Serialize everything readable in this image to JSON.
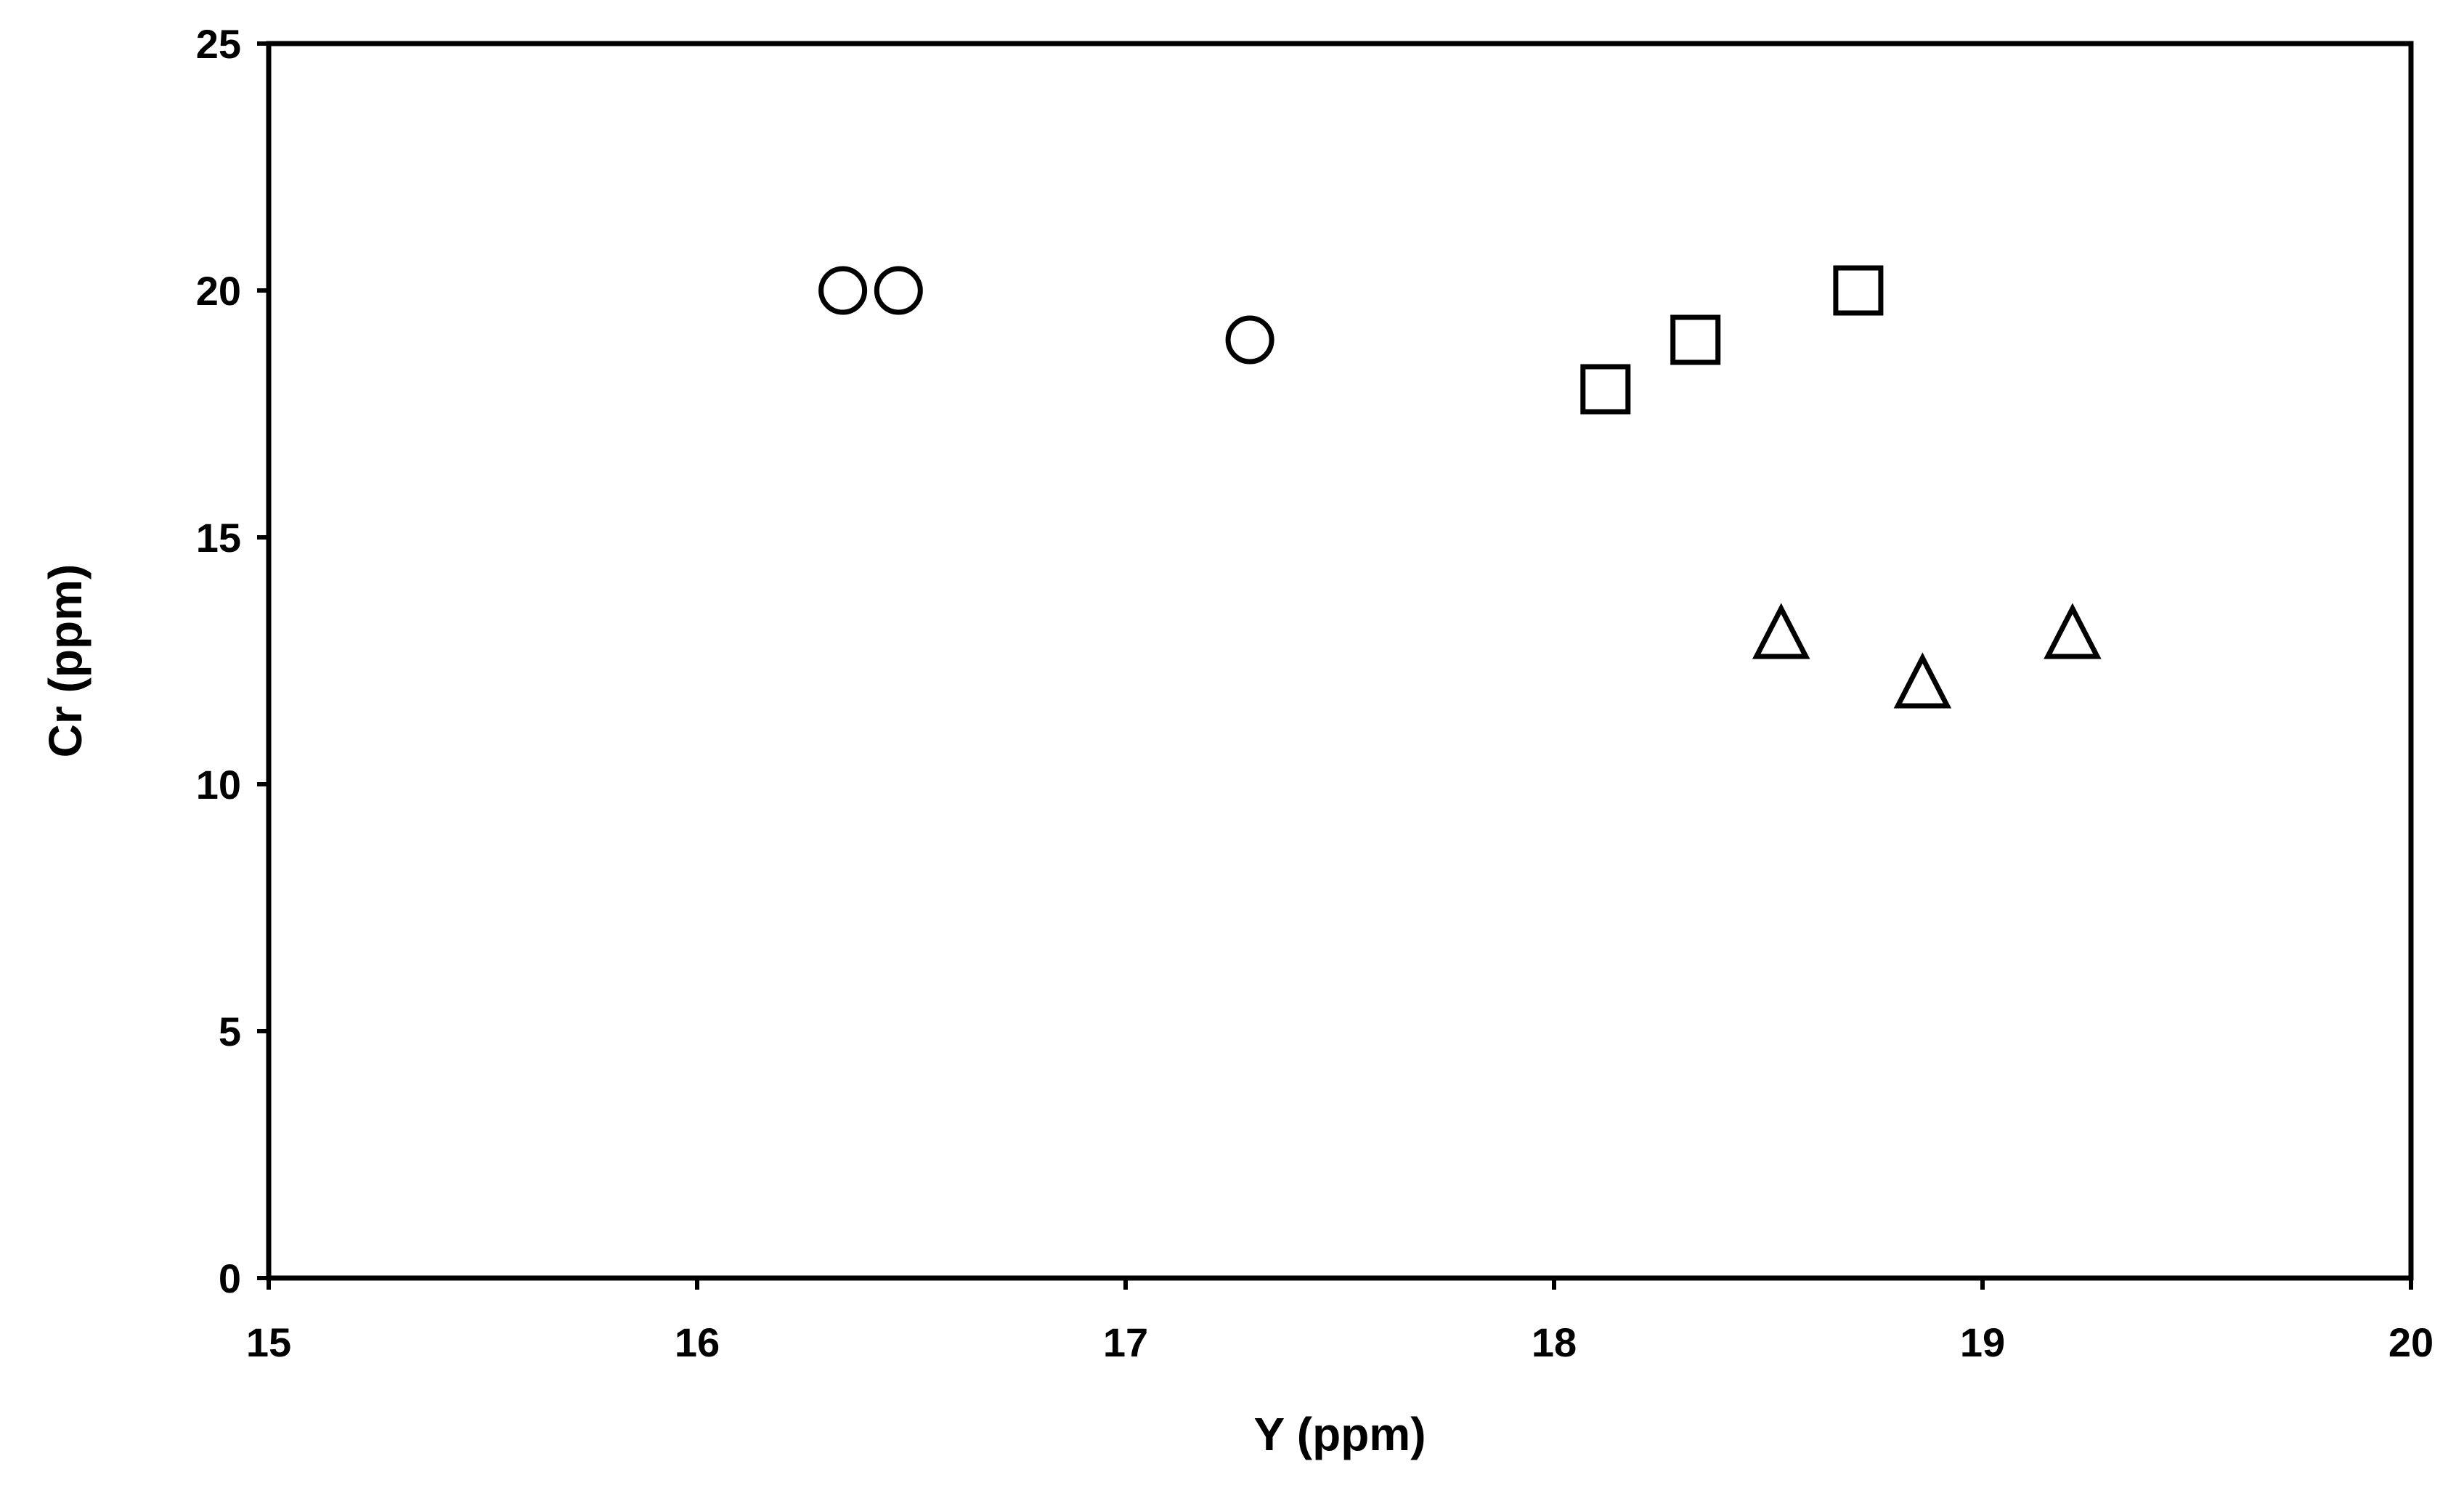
{
  "chart_data": {
    "type": "scatter",
    "title": "",
    "xlabel": "Y (ppm)",
    "ylabel": "Cr (ppm)",
    "xlim": [
      15,
      20
    ],
    "ylim": [
      0,
      25
    ],
    "xticks": [
      "15",
      "16",
      "17",
      "18",
      "19",
      "20"
    ],
    "yticks": [
      "0",
      "5",
      "10",
      "15",
      "20",
      "25"
    ],
    "grid": false,
    "legend": "none",
    "series": [
      {
        "marker": "circle",
        "color": "#000000",
        "points": [
          {
            "x": 16.34,
            "y": 20
          },
          {
            "x": 16.47,
            "y": 20
          },
          {
            "x": 17.29,
            "y": 19
          }
        ]
      },
      {
        "marker": "square",
        "color": "#000000",
        "points": [
          {
            "x": 18.12,
            "y": 18
          },
          {
            "x": 18.33,
            "y": 19
          },
          {
            "x": 18.71,
            "y": 20
          }
        ]
      },
      {
        "marker": "triangle",
        "color": "#000000",
        "points": [
          {
            "x": 18.53,
            "y": 13
          },
          {
            "x": 18.86,
            "y": 12
          },
          {
            "x": 19.21,
            "y": 13
          }
        ]
      }
    ]
  }
}
